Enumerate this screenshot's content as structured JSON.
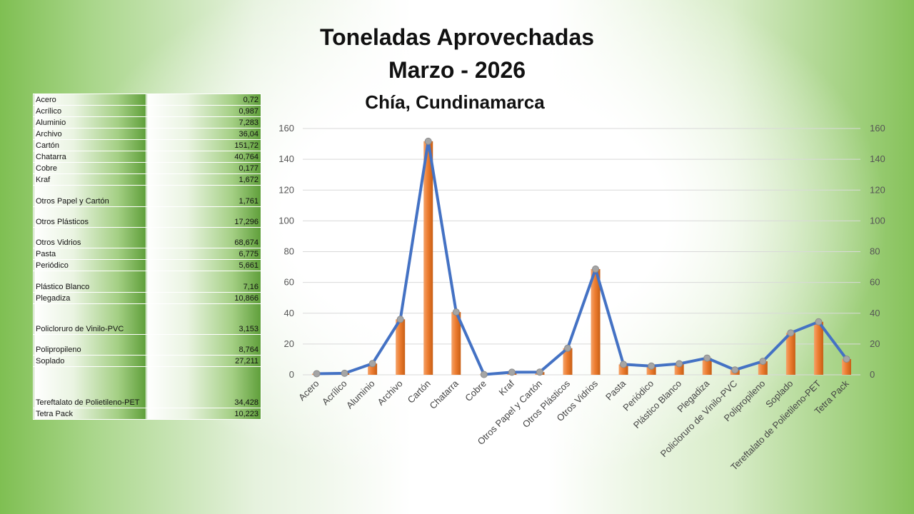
{
  "header": {
    "title_line1": "Toneladas Aprovechadas",
    "title_line2": "Marzo - 2026",
    "subtitle": "Chía, Cundinamarca"
  },
  "table": {
    "rows": [
      {
        "name": "Acero",
        "value": "0,72"
      },
      {
        "name": "Acrílico",
        "value": "0,987"
      },
      {
        "name": "Aluminio",
        "value": "7,283"
      },
      {
        "name": "Archivo",
        "value": "36,04"
      },
      {
        "name": "Cartón",
        "value": "151,72"
      },
      {
        "name": "Chatarra",
        "value": "40,764"
      },
      {
        "name": "Cobre",
        "value": "0,177"
      },
      {
        "name": "Kraf",
        "value": "1,672"
      },
      {
        "name": "Otros Papel y Cartón",
        "value": "1,761"
      },
      {
        "name": "Otros Plásticos",
        "value": "17,296"
      },
      {
        "name": "Otros Vidrios",
        "value": "68,674"
      },
      {
        "name": "Pasta",
        "value": "6,775"
      },
      {
        "name": "Periódico",
        "value": "5,661"
      },
      {
        "name": "Plástico Blanco",
        "value": "7,16"
      },
      {
        "name": "Plegadiza",
        "value": "10,866"
      },
      {
        "name": "Policloruro de Vinilo-PVC",
        "value": "3,153"
      },
      {
        "name": "Polipropileno",
        "value": "8,764"
      },
      {
        "name": "Soplado",
        "value": "27,211"
      },
      {
        "name": "Tereftalato de Polietileno-PET",
        "value": "34,428"
      },
      {
        "name": "Tetra Pack",
        "value": "10,223"
      }
    ]
  },
  "chart_data": {
    "type": "bar",
    "combo": "bar-and-line",
    "categories": [
      "Acero",
      "Acrílico",
      "Aluminio",
      "Archivo",
      "Cartón",
      "Chatarra",
      "Cobre",
      "Kraf",
      "Otros Papel y Cartón",
      "Otros Plásticos",
      "Otros Vidrios",
      "Pasta",
      "Periódico",
      "Plástico Blanco",
      "Plegadiza",
      "Policloruro de Vinilo-PVC",
      "Polipropileno",
      "Soplado",
      "Tereftalato de Polietileno-PET",
      "Tetra Pack"
    ],
    "series": [
      {
        "type": "bar",
        "values": [
          0.72,
          0.987,
          7.283,
          36.04,
          151.72,
          40.764,
          0.177,
          1.672,
          1.761,
          17.296,
          68.674,
          6.775,
          5.661,
          7.16,
          10.866,
          3.153,
          8.764,
          27.211,
          34.428,
          10.223
        ]
      },
      {
        "type": "line",
        "values": [
          0.72,
          0.987,
          7.283,
          36.04,
          151.72,
          40.764,
          0.177,
          1.672,
          1.761,
          17.296,
          68.674,
          6.775,
          5.661,
          7.16,
          10.866,
          3.153,
          8.764,
          27.211,
          34.428,
          10.223
        ]
      }
    ],
    "yticks": [
      0,
      20,
      40,
      60,
      80,
      100,
      120,
      140,
      160
    ],
    "ylim": [
      0,
      160
    ],
    "secondary_ylim": [
      0,
      160
    ],
    "grid": true,
    "colors": {
      "bar": "#ed7d31",
      "line": "#4472c4",
      "marker": "#a5a5a5"
    }
  }
}
